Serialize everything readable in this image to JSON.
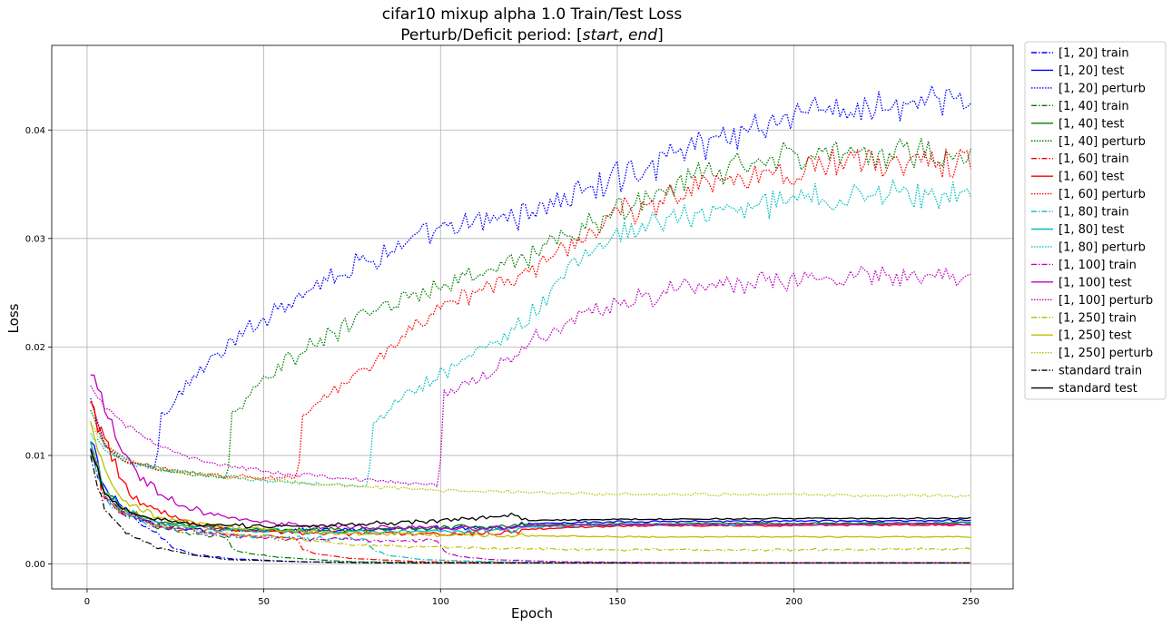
{
  "chart_data": {
    "type": "line",
    "title_line1": "cifar10 mixup alpha 1.0 Train/Test Loss",
    "title_line2_prefix": "Perturb/Deficit period: [",
    "title_line2_start": "start",
    "title_line2_sep": ", ",
    "title_line2_end": "end",
    "title_line2_suffix": "]",
    "xlabel": "Epoch",
    "ylabel": "Loss",
    "xlim": [
      -10,
      262
    ],
    "ylim": [
      -0.0023,
      0.0478
    ],
    "xticks": [
      0,
      50,
      100,
      150,
      200,
      250
    ],
    "xtick_labels": [
      "0",
      "50",
      "100",
      "150",
      "200",
      "250"
    ],
    "yticks": [
      0.0,
      0.01,
      0.02,
      0.03,
      0.04
    ],
    "ytick_labels": [
      "0.00",
      "0.01",
      "0.02",
      "0.03",
      "0.04"
    ],
    "grid": true,
    "legend_position": "outside-right",
    "groups": [
      {
        "name": "[1, 20]",
        "color": "#0000ff",
        "start": 1,
        "end": 20,
        "train": [
          [
            1,
            0.0108
          ],
          [
            5,
            0.0062
          ],
          [
            10,
            0.0047
          ],
          [
            15,
            0.0037
          ],
          [
            20,
            0.0028
          ],
          [
            22,
            0.0021
          ],
          [
            25,
            0.0014
          ],
          [
            30,
            0.0009
          ],
          [
            40,
            0.0005
          ],
          [
            60,
            0.0002
          ],
          [
            90,
            0.0001
          ],
          [
            250,
            0.0001
          ]
        ],
        "test": [
          [
            1,
            0.0115
          ],
          [
            5,
            0.0068
          ],
          [
            10,
            0.0052
          ],
          [
            15,
            0.0043
          ],
          [
            20,
            0.0037
          ],
          [
            30,
            0.0032
          ],
          [
            50,
            0.0031
          ],
          [
            100,
            0.0033
          ],
          [
            120,
            0.0034
          ],
          [
            125,
            0.0037
          ],
          [
            150,
            0.0039
          ],
          [
            250,
            0.004
          ]
        ],
        "perturb": [
          [
            1,
            0.015
          ],
          [
            5,
            0.011
          ],
          [
            10,
            0.0098
          ],
          [
            15,
            0.0092
          ],
          [
            19,
            0.009
          ],
          [
            20,
            0.0105
          ],
          [
            21,
            0.0137
          ],
          [
            30,
            0.0172
          ],
          [
            40,
            0.02
          ],
          [
            50,
            0.0227
          ],
          [
            60,
            0.025
          ],
          [
            75,
            0.0275
          ],
          [
            90,
            0.0295
          ],
          [
            100,
            0.0305
          ],
          [
            125,
            0.0325
          ],
          [
            150,
            0.0355
          ],
          [
            175,
            0.039
          ],
          [
            200,
            0.0415
          ],
          [
            225,
            0.042
          ],
          [
            250,
            0.0425
          ]
        ]
      },
      {
        "name": "[1, 40]",
        "color": "#008000",
        "start": 1,
        "end": 40,
        "train": [
          [
            1,
            0.0108
          ],
          [
            5,
            0.0062
          ],
          [
            10,
            0.0047
          ],
          [
            20,
            0.0035
          ],
          [
            30,
            0.0028
          ],
          [
            39,
            0.0025
          ],
          [
            41,
            0.0015
          ],
          [
            45,
            0.001
          ],
          [
            55,
            0.0006
          ],
          [
            75,
            0.0002
          ],
          [
            110,
            0.0001
          ],
          [
            250,
            0.0001
          ]
        ],
        "test": [
          [
            1,
            0.0112
          ],
          [
            5,
            0.0066
          ],
          [
            10,
            0.005
          ],
          [
            20,
            0.0038
          ],
          [
            40,
            0.0032
          ],
          [
            60,
            0.0031
          ],
          [
            100,
            0.0033
          ],
          [
            120,
            0.0034
          ],
          [
            125,
            0.0036
          ],
          [
            150,
            0.0037
          ],
          [
            250,
            0.0038
          ]
        ],
        "perturb": [
          [
            1,
            0.014
          ],
          [
            5,
            0.0108
          ],
          [
            10,
            0.0095
          ],
          [
            20,
            0.0087
          ],
          [
            30,
            0.0082
          ],
          [
            39,
            0.0079
          ],
          [
            40,
            0.009
          ],
          [
            41,
            0.0137
          ],
          [
            50,
            0.017
          ],
          [
            60,
            0.0195
          ],
          [
            75,
            0.0222
          ],
          [
            90,
            0.0245
          ],
          [
            100,
            0.0255
          ],
          [
            125,
            0.0285
          ],
          [
            150,
            0.0325
          ],
          [
            175,
            0.036
          ],
          [
            200,
            0.0378
          ],
          [
            225,
            0.038
          ],
          [
            250,
            0.0378
          ]
        ]
      },
      {
        "name": "[1, 60]",
        "color": "#ff0000",
        "start": 1,
        "end": 60,
        "train": [
          [
            1,
            0.0108
          ],
          [
            5,
            0.0062
          ],
          [
            10,
            0.0047
          ],
          [
            20,
            0.0035
          ],
          [
            40,
            0.0027
          ],
          [
            59,
            0.0024
          ],
          [
            61,
            0.0014
          ],
          [
            65,
            0.0009
          ],
          [
            75,
            0.0005
          ],
          [
            95,
            0.0002
          ],
          [
            130,
            0.0001
          ],
          [
            250,
            0.0001
          ]
        ],
        "test": [
          [
            1,
            0.0148
          ],
          [
            4,
            0.012
          ],
          [
            8,
            0.009
          ],
          [
            12,
            0.0065
          ],
          [
            20,
            0.0048
          ],
          [
            30,
            0.0036
          ],
          [
            40,
            0.0031
          ],
          [
            60,
            0.0028
          ],
          [
            100,
            0.0028
          ],
          [
            120,
            0.0029
          ],
          [
            125,
            0.0032
          ],
          [
            150,
            0.0035
          ],
          [
            250,
            0.0036
          ]
        ],
        "perturb": [
          [
            1,
            0.0148
          ],
          [
            5,
            0.011
          ],
          [
            10,
            0.0096
          ],
          [
            20,
            0.0088
          ],
          [
            40,
            0.0081
          ],
          [
            59,
            0.0079
          ],
          [
            60,
            0.0095
          ],
          [
            61,
            0.0137
          ],
          [
            70,
            0.016
          ],
          [
            80,
            0.0185
          ],
          [
            90,
            0.021
          ],
          [
            100,
            0.0232
          ],
          [
            110,
            0.025
          ],
          [
            125,
            0.0272
          ],
          [
            150,
            0.032
          ],
          [
            175,
            0.035
          ],
          [
            200,
            0.0365
          ],
          [
            225,
            0.037
          ],
          [
            250,
            0.0373
          ]
        ]
      },
      {
        "name": "[1, 80]",
        "color": "#00bfbf",
        "start": 1,
        "end": 80,
        "train": [
          [
            1,
            0.0108
          ],
          [
            5,
            0.0062
          ],
          [
            10,
            0.0047
          ],
          [
            20,
            0.0035
          ],
          [
            40,
            0.0026
          ],
          [
            60,
            0.0024
          ],
          [
            79,
            0.0023
          ],
          [
            81,
            0.0013
          ],
          [
            85,
            0.0008
          ],
          [
            95,
            0.0004
          ],
          [
            115,
            0.0002
          ],
          [
            150,
            0.0001
          ],
          [
            250,
            0.0001
          ]
        ],
        "test": [
          [
            1,
            0.011
          ],
          [
            5,
            0.0066
          ],
          [
            10,
            0.005
          ],
          [
            20,
            0.0038
          ],
          [
            40,
            0.0031
          ],
          [
            80,
            0.0029
          ],
          [
            100,
            0.003
          ],
          [
            120,
            0.0031
          ],
          [
            125,
            0.0034
          ],
          [
            150,
            0.0036
          ],
          [
            250,
            0.0037
          ]
        ],
        "perturb": [
          [
            1,
            0.012
          ],
          [
            5,
            0.0105
          ],
          [
            10,
            0.0095
          ],
          [
            20,
            0.0088
          ],
          [
            40,
            0.008
          ],
          [
            60,
            0.0075
          ],
          [
            79,
            0.0071
          ],
          [
            80,
            0.009
          ],
          [
            81,
            0.013
          ],
          [
            90,
            0.0155
          ],
          [
            100,
            0.0175
          ],
          [
            110,
            0.0195
          ],
          [
            120,
            0.0212
          ],
          [
            130,
            0.0245
          ],
          [
            140,
            0.028
          ],
          [
            150,
            0.0305
          ],
          [
            175,
            0.0325
          ],
          [
            200,
            0.0335
          ],
          [
            225,
            0.034
          ],
          [
            250,
            0.0342
          ]
        ]
      },
      {
        "name": "[1, 100]",
        "color": "#bf00bf",
        "start": 1,
        "end": 100,
        "train": [
          [
            1,
            0.0108
          ],
          [
            5,
            0.0062
          ],
          [
            10,
            0.0047
          ],
          [
            20,
            0.0035
          ],
          [
            40,
            0.0026
          ],
          [
            60,
            0.0023
          ],
          [
            80,
            0.0022
          ],
          [
            99,
            0.0021
          ],
          [
            101,
            0.0012
          ],
          [
            105,
            0.0007
          ],
          [
            115,
            0.0004
          ],
          [
            135,
            0.0002
          ],
          [
            170,
            0.0001
          ],
          [
            250,
            0.0001
          ]
        ],
        "test": [
          [
            1,
            0.0182
          ],
          [
            3,
            0.016
          ],
          [
            6,
            0.013
          ],
          [
            10,
            0.0105
          ],
          [
            15,
            0.0082
          ],
          [
            20,
            0.0065
          ],
          [
            30,
            0.005
          ],
          [
            40,
            0.0042
          ],
          [
            60,
            0.0035
          ],
          [
            80,
            0.0034
          ],
          [
            100,
            0.0033
          ],
          [
            120,
            0.0033
          ],
          [
            125,
            0.0035
          ],
          [
            150,
            0.0036
          ],
          [
            250,
            0.0037
          ]
        ],
        "perturb": [
          [
            1,
            0.0165
          ],
          [
            5,
            0.0145
          ],
          [
            10,
            0.013
          ],
          [
            15,
            0.0118
          ],
          [
            20,
            0.011
          ],
          [
            30,
            0.0098
          ],
          [
            40,
            0.009
          ],
          [
            60,
            0.0082
          ],
          [
            80,
            0.0077
          ],
          [
            99,
            0.0073
          ],
          [
            100,
            0.0095
          ],
          [
            101,
            0.0155
          ],
          [
            110,
            0.017
          ],
          [
            120,
            0.019
          ],
          [
            130,
            0.0215
          ],
          [
            150,
            0.024
          ],
          [
            175,
            0.0258
          ],
          [
            200,
            0.0263
          ],
          [
            225,
            0.0265
          ],
          [
            250,
            0.0266
          ]
        ]
      },
      {
        "name": "[1, 250]",
        "color": "#bfbf00",
        "start": 1,
        "end": 250,
        "train": [
          [
            1,
            0.0108
          ],
          [
            5,
            0.0065
          ],
          [
            10,
            0.005
          ],
          [
            20,
            0.0037
          ],
          [
            40,
            0.0028
          ],
          [
            60,
            0.0022
          ],
          [
            80,
            0.0017
          ],
          [
            100,
            0.0015
          ],
          [
            125,
            0.0014
          ],
          [
            150,
            0.0013
          ],
          [
            200,
            0.0013
          ],
          [
            250,
            0.0014
          ]
        ],
        "test": [
          [
            1,
            0.0135
          ],
          [
            3,
            0.011
          ],
          [
            5,
            0.0085
          ],
          [
            10,
            0.0058
          ],
          [
            20,
            0.0042
          ],
          [
            40,
            0.0034
          ],
          [
            60,
            0.003
          ],
          [
            80,
            0.0028
          ],
          [
            100,
            0.0027
          ],
          [
            125,
            0.0026
          ],
          [
            150,
            0.0025
          ],
          [
            200,
            0.0025
          ],
          [
            250,
            0.0025
          ]
        ],
        "perturb": [
          [
            1,
            0.013
          ],
          [
            5,
            0.011
          ],
          [
            10,
            0.0098
          ],
          [
            20,
            0.0088
          ],
          [
            40,
            0.008
          ],
          [
            60,
            0.0075
          ],
          [
            80,
            0.0071
          ],
          [
            100,
            0.0068
          ],
          [
            125,
            0.0066
          ],
          [
            150,
            0.0064
          ],
          [
            175,
            0.0064
          ],
          [
            200,
            0.0064
          ],
          [
            225,
            0.0063
          ],
          [
            250,
            0.0063
          ]
        ]
      }
    ],
    "standard": {
      "name": "standard",
      "color": "#000000",
      "train": [
        [
          1,
          0.01
        ],
        [
          3,
          0.007
        ],
        [
          5,
          0.005
        ],
        [
          10,
          0.0032
        ],
        [
          15,
          0.0022
        ],
        [
          20,
          0.0015
        ],
        [
          30,
          0.0008
        ],
        [
          40,
          0.0004
        ],
        [
          60,
          0.0002
        ],
        [
          80,
          0.0001
        ],
        [
          250,
          0.0001
        ]
      ],
      "test": [
        [
          1,
          0.0105
        ],
        [
          5,
          0.0065
        ],
        [
          10,
          0.005
        ],
        [
          20,
          0.004
        ],
        [
          40,
          0.0035
        ],
        [
          60,
          0.0035
        ],
        [
          80,
          0.0037
        ],
        [
          100,
          0.004
        ],
        [
          115,
          0.0043
        ],
        [
          120,
          0.0046
        ],
        [
          125,
          0.004
        ],
        [
          150,
          0.0041
        ],
        [
          200,
          0.0042
        ],
        [
          250,
          0.0042
        ]
      ]
    },
    "legend_entries": [
      "[1, 20] train",
      "[1, 20] test",
      "[1, 20] perturb",
      "[1, 40] train",
      "[1, 40] test",
      "[1, 40] perturb",
      "[1, 60] train",
      "[1, 60] test",
      "[1, 60] perturb",
      "[1, 80] train",
      "[1, 80] test",
      "[1, 80] perturb",
      "[1, 100] train",
      "[1, 100] test",
      "[1, 100] perturb",
      "[1, 250] train",
      "[1, 250] test",
      "[1, 250] perturb",
      "standard train",
      "standard test"
    ]
  }
}
